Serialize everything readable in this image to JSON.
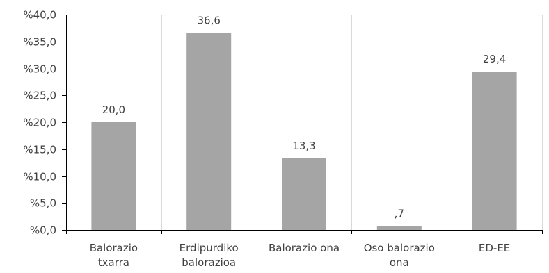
{
  "chart_data": {
    "type": "bar",
    "categories": [
      [
        "Balorazio",
        "txarra"
      ],
      [
        "Erdipurdiko",
        "balorazioa"
      ],
      [
        "Balorazio ona"
      ],
      [
        "Oso balorazio",
        "ona"
      ],
      [
        "ED-EE"
      ]
    ],
    "values": [
      20.0,
      36.6,
      13.3,
      0.7,
      29.4
    ],
    "data_labels": [
      "20,0",
      "36,6",
      "13,3",
      ",7",
      "29,4"
    ],
    "ylim": [
      0,
      40
    ],
    "y_ticks": [
      0,
      5,
      10,
      15,
      20,
      25,
      30,
      35,
      40
    ],
    "y_tick_labels": [
      "%0,0",
      "%5,0",
      "%10,0",
      "%15,0",
      "%20,0",
      "%25,0",
      "%30,0",
      "%35,0",
      "%40,0"
    ],
    "grid": "vertical",
    "colors": {
      "bar": "#a5a5a5",
      "grid": "#d9d9d9",
      "axis": "#000000",
      "text": "#404040"
    }
  }
}
